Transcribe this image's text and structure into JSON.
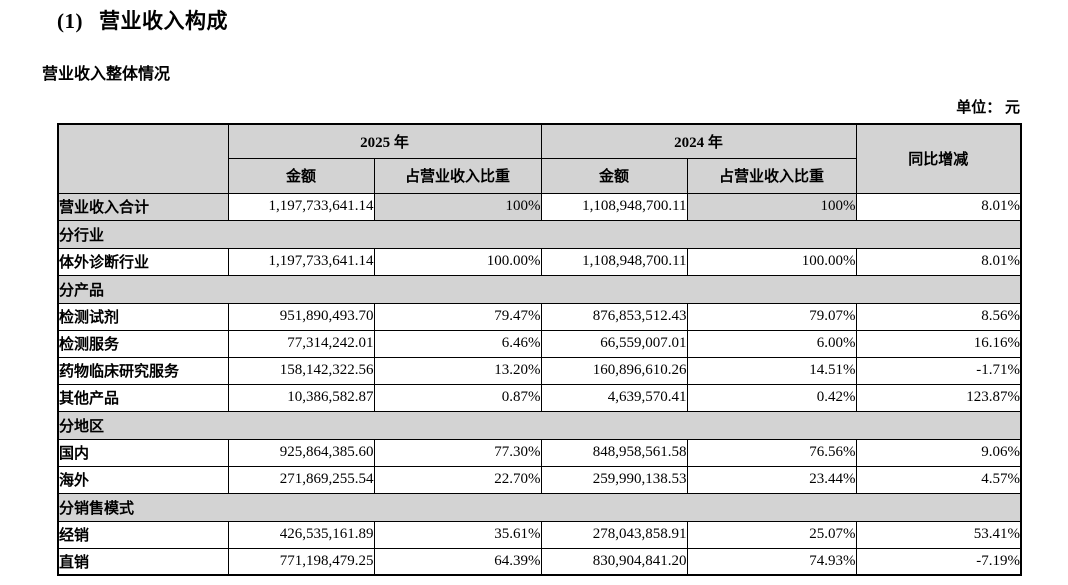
{
  "page": {
    "title_number": "(1)",
    "title_text": "营业收入构成",
    "subtitle": "营业收入整体情况",
    "unit_label": "单位： 元"
  },
  "colors": {
    "section_bg": "#d3d3d3",
    "border": "#000000"
  },
  "table": {
    "header": {
      "year_2025": "2025 年",
      "year_2024": "2024 年",
      "amount": "金额",
      "ratio": "占营业收入比重",
      "yoy": "同比增减"
    },
    "rows": [
      {
        "type": "total",
        "label": "营业收入合计",
        "a2025": "1,197,733,641.14",
        "r2025": "100%",
        "a2024": "1,108,948,700.11",
        "r2024": "100%",
        "yoy": "8.01%"
      },
      {
        "type": "section",
        "label": "分行业"
      },
      {
        "type": "data",
        "label": "体外诊断行业",
        "a2025": "1,197,733,641.14",
        "r2025": "100.00%",
        "a2024": "1,108,948,700.11",
        "r2024": "100.00%",
        "yoy": "8.01%"
      },
      {
        "type": "section",
        "label": "分产品"
      },
      {
        "type": "data",
        "label": "检测试剂",
        "a2025": "951,890,493.70",
        "r2025": "79.47%",
        "a2024": "876,853,512.43",
        "r2024": "79.07%",
        "yoy": "8.56%"
      },
      {
        "type": "data",
        "label": "检测服务",
        "a2025": "77,314,242.01",
        "r2025": "6.46%",
        "a2024": "66,559,007.01",
        "r2024": "6.00%",
        "yoy": "16.16%"
      },
      {
        "type": "data",
        "label": "药物临床研究服务",
        "a2025": "158,142,322.56",
        "r2025": "13.20%",
        "a2024": "160,896,610.26",
        "r2024": "14.51%",
        "yoy": "-1.71%"
      },
      {
        "type": "data",
        "label": "其他产品",
        "a2025": "10,386,582.87",
        "r2025": "0.87%",
        "a2024": "4,639,570.41",
        "r2024": "0.42%",
        "yoy": "123.87%"
      },
      {
        "type": "section",
        "label": "分地区"
      },
      {
        "type": "data",
        "label": "国内",
        "a2025": "925,864,385.60",
        "r2025": "77.30%",
        "a2024": "848,958,561.58",
        "r2024": "76.56%",
        "yoy": "9.06%"
      },
      {
        "type": "data",
        "label": "海外",
        "a2025": "271,869,255.54",
        "r2025": "22.70%",
        "a2024": "259,990,138.53",
        "r2024": "23.44%",
        "yoy": "4.57%"
      },
      {
        "type": "section",
        "label": "分销售模式"
      },
      {
        "type": "data",
        "label": "经销",
        "a2025": "426,535,161.89",
        "r2025": "35.61%",
        "a2024": "278,043,858.91",
        "r2024": "25.07%",
        "yoy": "53.41%"
      },
      {
        "type": "data",
        "label": "直销",
        "a2025": "771,198,479.25",
        "r2025": "64.39%",
        "a2024": "830,904,841.20",
        "r2024": "74.93%",
        "yoy": "-7.19%"
      }
    ]
  }
}
